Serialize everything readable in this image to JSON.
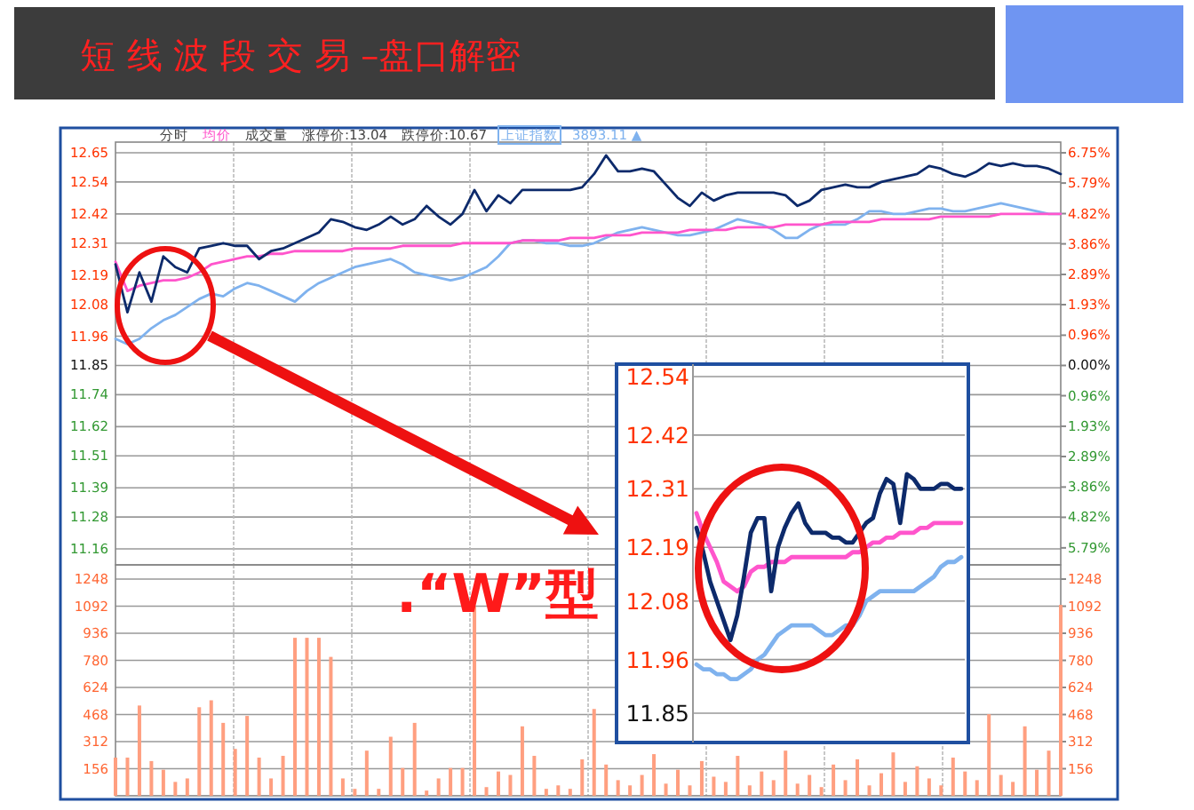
{
  "chart_data": [
    {
      "type": "line",
      "title": "短 线 波 段 交 易 –盘口解密",
      "categories": [
        null,
        null,
        null,
        null,
        null,
        null,
        null,
        null,
        null,
        null,
        null,
        null,
        null,
        null,
        null,
        null,
        null,
        null,
        null,
        null,
        null,
        null,
        null,
        null,
        null,
        null,
        null,
        null,
        null,
        null,
        null,
        null,
        null,
        null,
        null,
        null,
        null,
        null,
        null,
        null,
        null,
        null,
        null,
        null,
        null,
        null,
        null,
        null,
        null,
        null,
        null,
        null,
        null,
        null,
        null,
        null,
        null,
        null,
        null,
        null,
        null,
        null,
        null,
        null,
        null,
        null,
        null,
        null,
        null,
        null,
        null,
        null,
        null,
        null,
        null,
        null,
        null,
        null,
        null,
        null
      ],
      "ylim": [
        11.1,
        12.69
      ],
      "yticks": [
        11.16,
        11.28,
        11.39,
        11.51,
        11.62,
        11.74,
        11.85,
        11.96,
        12.08,
        12.19,
        12.31,
        12.42,
        12.54,
        12.65
      ],
      "y2lim": [
        -6.33,
        7.09
      ],
      "y2ticks": [
        {
          "value": -5.79,
          "label": "5.79%"
        },
        {
          "value": -4.82,
          "label": "4.82%"
        },
        {
          "value": -3.86,
          "label": "3.86%"
        },
        {
          "value": -2.89,
          "label": "2.89%"
        },
        {
          "value": -1.93,
          "label": "1.93%"
        },
        {
          "value": -0.96,
          "label": "0.96%"
        },
        {
          "value": 0,
          "label": "0.00%"
        },
        {
          "value": 0.96,
          "label": "0.96%"
        },
        {
          "value": 1.93,
          "label": "1.93%"
        },
        {
          "value": 2.89,
          "label": "2.89%"
        },
        {
          "value": 3.86,
          "label": "3.86%"
        },
        {
          "value": 4.82,
          "label": "4.82%"
        },
        {
          "value": 5.79,
          "label": "5.79%"
        },
        {
          "value": 6.75,
          "label": "6.75%"
        }
      ],
      "grid": true,
      "legend": "top left",
      "annotations": [
        "分时",
        "成交量",
        "涨停价:13.04",
        "跌停价:10.67",
        "3893.11 ▲"
      ],
      "series": [
        {
          "color": "#0d2a6b",
          "values": [
            12.23,
            12.05,
            12.2,
            12.09,
            12.26,
            12.22,
            12.2,
            12.29,
            12.3,
            12.31,
            12.3,
            12.3,
            12.25,
            12.28,
            12.29,
            12.31,
            12.33,
            12.35,
            12.4,
            12.39,
            12.37,
            12.36,
            12.38,
            12.41,
            12.38,
            12.4,
            12.45,
            12.41,
            12.38,
            12.42,
            12.51,
            12.43,
            12.49,
            12.46,
            12.51,
            12.51,
            12.51,
            12.51,
            12.51,
            12.52,
            12.57,
            12.64,
            12.58,
            12.58,
            12.59,
            12.58,
            12.53,
            12.48,
            12.45,
            12.5,
            12.47,
            12.49,
            12.5,
            12.5,
            12.5,
            12.5,
            12.49,
            12.45,
            12.47,
            12.51,
            12.52,
            12.53,
            12.52,
            12.52,
            12.54,
            12.55,
            12.56,
            12.57,
            12.6,
            12.59,
            12.57,
            12.56,
            12.58,
            12.61,
            12.6,
            12.61,
            12.6,
            12.6,
            12.59,
            12.57
          ]
        },
        {
          "name": "均价",
          "color": "#ff55cc",
          "values": [
            12.24,
            12.13,
            12.15,
            12.16,
            12.17,
            12.17,
            12.18,
            12.2,
            12.23,
            12.24,
            12.25,
            12.26,
            12.26,
            12.27,
            12.27,
            12.28,
            12.28,
            12.28,
            12.28,
            12.28,
            12.29,
            12.29,
            12.29,
            12.29,
            12.3,
            12.3,
            12.3,
            12.3,
            12.3,
            12.31,
            12.31,
            12.31,
            12.31,
            12.31,
            12.32,
            12.32,
            12.32,
            12.32,
            12.33,
            12.33,
            12.33,
            12.34,
            12.34,
            12.34,
            12.35,
            12.35,
            12.35,
            12.35,
            12.36,
            12.36,
            12.36,
            12.36,
            12.37,
            12.37,
            12.37,
            12.37,
            12.38,
            12.38,
            12.38,
            12.38,
            12.39,
            12.39,
            12.39,
            12.39,
            12.4,
            12.4,
            12.4,
            12.4,
            12.4,
            12.41,
            12.41,
            12.41,
            12.41,
            12.41,
            12.42,
            12.42,
            12.42,
            12.42,
            12.42,
            12.42
          ]
        },
        {
          "name": "上证指数",
          "color": "#7fb2ee",
          "values": [
            11.95,
            11.93,
            11.95,
            11.99,
            12.02,
            12.04,
            12.07,
            12.1,
            12.12,
            12.11,
            12.14,
            12.16,
            12.15,
            12.13,
            12.11,
            12.09,
            12.13,
            12.16,
            12.18,
            12.2,
            12.22,
            12.23,
            12.24,
            12.25,
            12.23,
            12.2,
            12.19,
            12.18,
            12.17,
            12.18,
            12.2,
            12.22,
            12.26,
            12.31,
            12.32,
            12.32,
            12.31,
            12.31,
            12.3,
            12.3,
            12.31,
            12.33,
            12.35,
            12.36,
            12.37,
            12.36,
            12.35,
            12.34,
            12.34,
            12.35,
            12.36,
            12.38,
            12.4,
            12.39,
            12.38,
            12.36,
            12.33,
            12.33,
            12.36,
            12.38,
            12.38,
            12.38,
            12.4,
            12.43,
            12.43,
            12.42,
            12.42,
            12.43,
            12.44,
            12.44,
            12.43,
            12.43,
            12.44,
            12.45,
            12.46,
            12.45,
            12.44,
            12.43,
            12.42,
            12.42
          ]
        }
      ]
    },
    {
      "type": "bar",
      "categories": [
        null,
        null,
        null,
        null,
        null,
        null,
        null,
        null,
        null,
        null,
        null,
        null,
        null,
        null,
        null,
        null,
        null,
        null,
        null,
        null,
        null,
        null,
        null,
        null,
        null,
        null,
        null,
        null,
        null,
        null,
        null,
        null,
        null,
        null,
        null,
        null,
        null,
        null,
        null,
        null,
        null,
        null,
        null,
        null,
        null,
        null,
        null,
        null,
        null,
        null,
        null,
        null,
        null,
        null,
        null,
        null,
        null,
        null,
        null,
        null,
        null,
        null,
        null,
        null,
        null,
        null,
        null,
        null,
        null,
        null,
        null,
        null,
        null,
        null,
        null,
        null,
        null,
        null,
        null,
        null
      ],
      "ylim": [
        0,
        1330
      ],
      "yticks": [
        156,
        312,
        468,
        624,
        780,
        936,
        1092,
        1248
      ],
      "y2lim": [
        0,
        1330
      ],
      "y2ticks": [
        156,
        312,
        468,
        624,
        780,
        936,
        1092,
        1248
      ],
      "grid": true,
      "color": "#ff9f80",
      "values": [
        220,
        220,
        520,
        200,
        150,
        80,
        100,
        510,
        550,
        420,
        270,
        460,
        220,
        100,
        230,
        910,
        910,
        910,
        800,
        100,
        40,
        260,
        40,
        340,
        160,
        420,
        30,
        100,
        160,
        160,
        1090,
        50,
        140,
        120,
        400,
        230,
        40,
        60,
        40,
        210,
        500,
        180,
        90,
        60,
        120,
        240,
        70,
        150,
        60,
        200,
        110,
        80,
        230,
        60,
        140,
        90,
        260,
        70,
        120,
        50,
        180,
        90,
        210,
        60,
        130,
        250,
        80,
        170,
        100,
        60,
        220,
        140,
        90,
        470,
        120,
        80,
        400,
        150,
        260,
        1100
      ]
    },
    {
      "type": "line",
      "categories": [
        null,
        null,
        null,
        null,
        null,
        null,
        null,
        null,
        null,
        null,
        null,
        null,
        null,
        null,
        null,
        null,
        null,
        null,
        null,
        null,
        null,
        null,
        null,
        null,
        null,
        null,
        null,
        null,
        null,
        null,
        null,
        null,
        null,
        null,
        null,
        null,
        null,
        null,
        null,
        null
      ],
      "ylim": [
        11.79,
        12.54
      ],
      "yticks": [
        11.85,
        11.96,
        12.08,
        12.19,
        12.31,
        12.42,
        12.54
      ],
      "grid": "y",
      "annotations": [
        ".“W”型"
      ],
      "series": [
        {
          "color": "#0d2a6b",
          "values": [
            12.23,
            12.18,
            12.12,
            12.08,
            12.04,
            12.0,
            12.05,
            12.13,
            12.22,
            12.25,
            12.25,
            12.1,
            12.19,
            12.23,
            12.26,
            12.28,
            12.24,
            12.22,
            12.22,
            12.22,
            12.21,
            12.21,
            12.2,
            12.2,
            12.22,
            12.24,
            12.25,
            12.3,
            12.33,
            12.32,
            12.24,
            12.34,
            12.33,
            12.31,
            12.31,
            12.31,
            12.32,
            12.32,
            12.31,
            12.31
          ]
        },
        {
          "color": "#ff55cc",
          "values": [
            12.26,
            12.22,
            12.19,
            12.16,
            12.12,
            12.11,
            12.1,
            12.11,
            12.14,
            12.15,
            12.15,
            12.16,
            12.16,
            12.16,
            12.17,
            12.17,
            12.17,
            12.17,
            12.17,
            12.17,
            12.17,
            12.17,
            12.17,
            12.18,
            12.18,
            12.19,
            12.2,
            12.2,
            12.21,
            12.21,
            12.22,
            12.22,
            12.22,
            12.23,
            12.23,
            12.24,
            12.24,
            12.24,
            12.24,
            12.24
          ]
        },
        {
          "color": "#7fb2ee",
          "values": [
            11.95,
            11.94,
            11.94,
            11.93,
            11.93,
            11.92,
            11.92,
            11.93,
            11.94,
            11.96,
            11.97,
            11.99,
            12.01,
            12.02,
            12.03,
            12.03,
            12.03,
            12.03,
            12.02,
            12.01,
            12.01,
            12.02,
            12.03,
            12.03,
            12.05,
            12.08,
            12.09,
            12.1,
            12.1,
            12.1,
            12.1,
            12.1,
            12.1,
            12.11,
            12.12,
            12.13,
            12.15,
            12.16,
            12.16,
            12.17
          ]
        }
      ]
    }
  ]
}
